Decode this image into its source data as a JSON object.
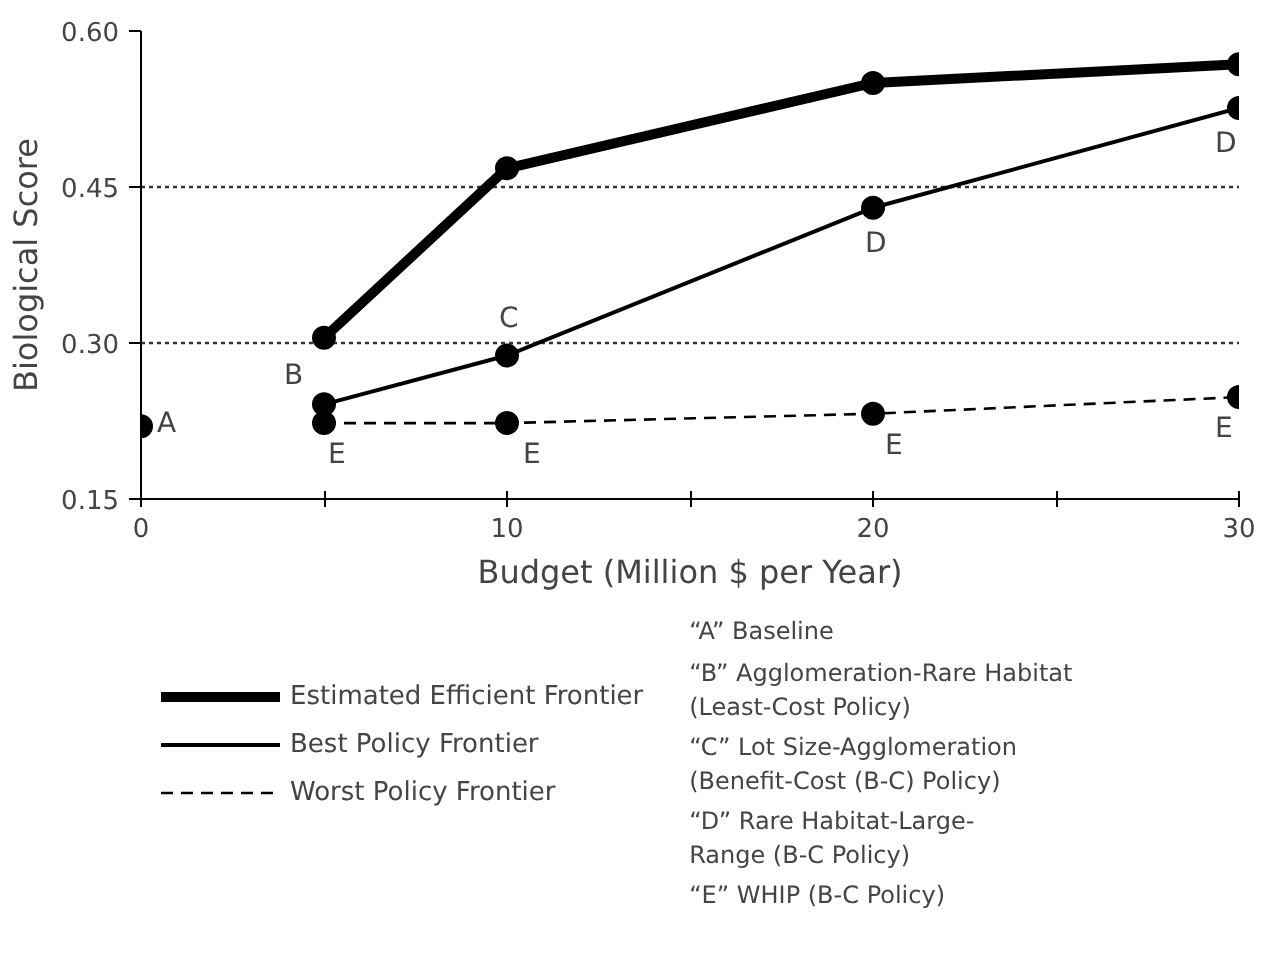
{
  "chart_data": {
    "type": "line",
    "xlabel": "Budget (Million $ per Year)",
    "ylabel": "Biological Score",
    "xlim": [
      0,
      30
    ],
    "xticks": [
      0,
      {
        "value": 5,
        "label": null
      },
      10,
      {
        "value": 15,
        "label": null
      },
      20,
      {
        "value": 25,
        "label": null
      },
      30
    ],
    "ylim": [
      0.15,
      0.6
    ],
    "yticks": [
      0.15,
      {
        "value": 0.3,
        "label": "0.30"
      },
      0.45,
      {
        "value": 0.6,
        "label": "0.60"
      }
    ],
    "grid": "y",
    "marker": "circle",
    "legend": "bottom",
    "series": [
      {
        "name": "Estimated Efficient Frontier",
        "color": "#000000",
        "line_style": "solid",
        "x": [
          5,
          10,
          20,
          30
        ],
        "values": [
          0.305,
          0.468,
          0.55,
          0.568
        ]
      },
      {
        "name": "Best Policy Frontier",
        "color": "#000000",
        "line_style": "solid",
        "x": [
          5,
          10,
          20,
          30
        ],
        "values": [
          0.241,
          0.288,
          0.43,
          0.526
        ]
      },
      {
        "name": "Worst Policy Frontier",
        "color": "#000000",
        "line_style": "dashed",
        "x": [
          5,
          10,
          20,
          30
        ],
        "values": [
          0.223,
          0.223,
          0.232,
          0.248
        ]
      },
      {
        "type": "scatter",
        "color": "#000000",
        "x": [
          0
        ],
        "values": [
          0.22
        ]
      }
    ],
    "annotations": [
      {
        "text": "A",
        "x": 0,
        "y": 0.22
      },
      {
        "text": "B",
        "x": 5,
        "y": 0.241
      },
      {
        "text": "C",
        "x": 10,
        "y": 0.288
      },
      {
        "text": "D",
        "x": 20,
        "y": 0.43
      },
      {
        "text": "D",
        "x": 30,
        "y": 0.526
      },
      {
        "text": "E",
        "x": 5,
        "y": 0.223
      },
      {
        "text": "E",
        "x": 10,
        "y": 0.223
      },
      {
        "text": "E",
        "x": 20,
        "y": 0.232
      },
      {
        "text": "E",
        "x": 30,
        "y": 0.248
      },
      "“A”   Baseline",
      "“B”   Agglomeration-Rare Habitat\n        (Least-Cost Policy)",
      "“C”   Lot Size-Agglomeration\n        (Benefit-Cost (B-C) Policy)",
      "“D”   Rare Habitat-Large-\n        Range (B-C Policy)",
      "“E”   WHIP (B-C Policy)"
    ]
  }
}
